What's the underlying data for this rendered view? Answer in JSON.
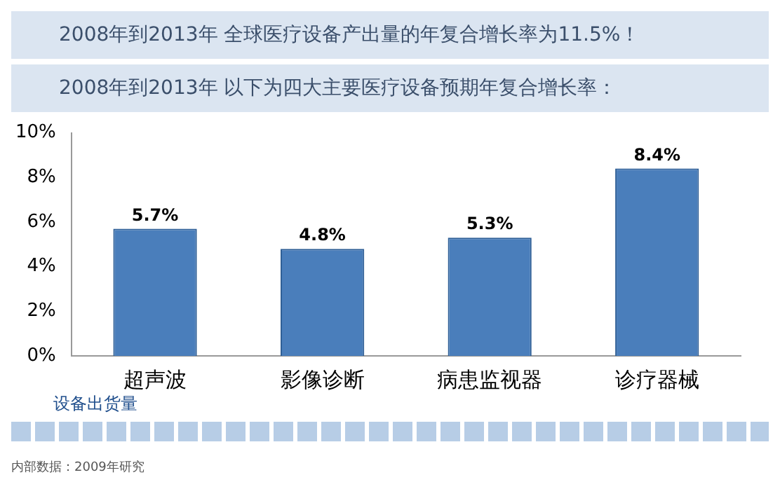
{
  "chart_data": {
    "type": "bar",
    "title": "2008年到2013年 全球医疗设备产出量的年复合增长率为11.5%！",
    "subtitle": "2008年到2013年 以下为四大主要医疗设备预期年复合增长率：",
    "xlabel": "设备出货量",
    "categories": [
      "超声波",
      "影像诊断",
      "病患监视器",
      "诊疗器械"
    ],
    "values": [
      5.7,
      4.8,
      5.3,
      8.4
    ],
    "value_labels": [
      "5.7%",
      "4.8%",
      "5.3%",
      "8.4%"
    ],
    "color": "#4a7ebb",
    "ylim": [
      0,
      10
    ],
    "yticks": [
      {
        "value": 0,
        "label": "0%"
      },
      {
        "value": 2,
        "label": "2%"
      },
      {
        "value": 4,
        "label": "4%"
      },
      {
        "value": 6,
        "label": "6%"
      },
      {
        "value": 8,
        "label": "8%"
      },
      {
        "value": 10,
        "label": "10%"
      }
    ],
    "grid": false,
    "legend": false,
    "annotations": [
      "内部数据：2009年研究"
    ]
  }
}
